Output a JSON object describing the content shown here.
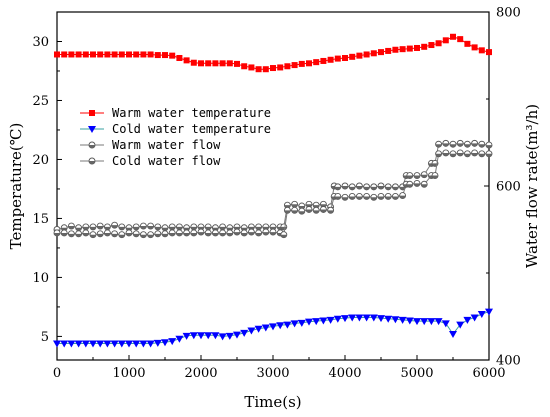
{
  "chart_data": {
    "type": "line",
    "xlabel": "Time(s)",
    "ylabel_left": "Temperature(℃)",
    "ylabel_right": "Water flow rate(m³/h)",
    "xlim": [
      0,
      6000
    ],
    "ylim_left": [
      3,
      32.5
    ],
    "ylim_right": [
      400,
      800
    ],
    "x_ticks": [
      0,
      1000,
      2000,
      3000,
      4000,
      5000,
      6000
    ],
    "y_ticks_left": [
      5,
      10,
      15,
      20,
      25,
      30
    ],
    "y_ticks_right": [
      400,
      600,
      800
    ],
    "grid": false,
    "legend_position": "center-left",
    "series": [
      {
        "name": "Warm water temperature",
        "axis": "left",
        "color": "#ff0000",
        "marker": "square",
        "x": [
          0,
          100,
          200,
          300,
          400,
          500,
          600,
          700,
          800,
          900,
          1000,
          1100,
          1200,
          1300,
          1400,
          1500,
          1600,
          1700,
          1800,
          1900,
          2000,
          2100,
          2200,
          2300,
          2400,
          2500,
          2600,
          2700,
          2800,
          2900,
          3000,
          3100,
          3200,
          3300,
          3400,
          3500,
          3600,
          3700,
          3800,
          3900,
          4000,
          4100,
          4200,
          4300,
          4400,
          4500,
          4600,
          4700,
          4800,
          4900,
          5000,
          5100,
          5200,
          5300,
          5400,
          5500,
          5600,
          5700,
          5800,
          5900,
          6000
        ],
        "y": [
          28.9,
          28.9,
          28.9,
          28.9,
          28.9,
          28.9,
          28.9,
          28.9,
          28.9,
          28.9,
          28.9,
          28.9,
          28.9,
          28.9,
          28.85,
          28.85,
          28.8,
          28.6,
          28.4,
          28.2,
          28.15,
          28.15,
          28.15,
          28.15,
          28.15,
          28.1,
          27.9,
          27.8,
          27.65,
          27.65,
          27.75,
          27.8,
          27.9,
          28.0,
          28.1,
          28.15,
          28.25,
          28.35,
          28.45,
          28.55,
          28.6,
          28.7,
          28.8,
          28.9,
          29.0,
          29.1,
          29.2,
          29.3,
          29.35,
          29.4,
          29.45,
          29.55,
          29.7,
          29.85,
          30.1,
          30.4,
          30.2,
          29.8,
          29.5,
          29.25,
          29.1
        ]
      },
      {
        "name": "Cold water temperature",
        "axis": "left",
        "color": "#0000ff",
        "marker": "triangle-down",
        "x": [
          0,
          100,
          200,
          300,
          400,
          500,
          600,
          700,
          800,
          900,
          1000,
          1100,
          1200,
          1300,
          1400,
          1500,
          1600,
          1700,
          1800,
          1900,
          2000,
          2100,
          2200,
          2300,
          2400,
          2500,
          2600,
          2700,
          2800,
          2900,
          3000,
          3100,
          3200,
          3300,
          3400,
          3500,
          3600,
          3700,
          3800,
          3900,
          4000,
          4100,
          4200,
          4300,
          4400,
          4500,
          4600,
          4700,
          4800,
          4900,
          5000,
          5100,
          5200,
          5300,
          5400,
          5500,
          5600,
          5700,
          5800,
          5900,
          6000
        ],
        "y": [
          4.4,
          4.4,
          4.4,
          4.4,
          4.4,
          4.4,
          4.4,
          4.4,
          4.4,
          4.4,
          4.4,
          4.4,
          4.4,
          4.4,
          4.45,
          4.5,
          4.6,
          4.8,
          5.05,
          5.1,
          5.1,
          5.1,
          5.1,
          5.0,
          5.05,
          5.15,
          5.3,
          5.5,
          5.65,
          5.75,
          5.85,
          5.95,
          6.0,
          6.1,
          6.15,
          6.25,
          6.3,
          6.35,
          6.4,
          6.5,
          6.55,
          6.6,
          6.6,
          6.6,
          6.6,
          6.55,
          6.5,
          6.45,
          6.4,
          6.35,
          6.3,
          6.3,
          6.3,
          6.3,
          6.1,
          5.2,
          6.0,
          6.4,
          6.6,
          6.9,
          7.1
        ]
      }
    ],
    "flow_series": [
      {
        "name": "Warm water flow",
        "axis": "right",
        "color": "#9a9a9a",
        "marker": "circle-half",
        "x": [
          0,
          100,
          200,
          300,
          400,
          500,
          600,
          700,
          800,
          900,
          1000,
          1100,
          1200,
          1300,
          1400,
          1500,
          1600,
          1700,
          1800,
          1900,
          2000,
          2100,
          2200,
          2300,
          2400,
          2500,
          2600,
          2700,
          2800,
          2900,
          3000,
          3100,
          3150,
          3200,
          3300,
          3400,
          3500,
          3600,
          3700,
          3800,
          3850,
          3900,
          4000,
          4100,
          4200,
          4300,
          4400,
          4500,
          4600,
          4700,
          4800,
          4850,
          4900,
          5000,
          5100,
          5200,
          5250,
          5300,
          5400,
          5500,
          5600,
          5700,
          5800,
          5900,
          6000
        ],
        "y": [
          550,
          552,
          554,
          552,
          553,
          553,
          554,
          553,
          555,
          553,
          552,
          553,
          554,
          554,
          553,
          552,
          553,
          553,
          552,
          553,
          553,
          553,
          552,
          553,
          552,
          553,
          552,
          553,
          553,
          553,
          553,
          553,
          553,
          578,
          579,
          577,
          579,
          578,
          579,
          576,
          600,
          599,
          600,
          599,
          600,
          599,
          599,
          600,
          599,
          599,
          599,
          612,
          612,
          612,
          613,
          626,
          626,
          648,
          649,
          648,
          649,
          648,
          649,
          648,
          647
        ]
      },
      {
        "name": "Cold water flow",
        "axis": "right",
        "color": "#9a9a9a",
        "marker": "circle-half",
        "x": [
          0,
          100,
          200,
          300,
          400,
          500,
          600,
          700,
          800,
          900,
          1000,
          1100,
          1200,
          1300,
          1400,
          1500,
          1600,
          1700,
          1800,
          1900,
          2000,
          2100,
          2200,
          2300,
          2400,
          2500,
          2600,
          2700,
          2800,
          2900,
          3000,
          3100,
          3150,
          3200,
          3300,
          3400,
          3500,
          3600,
          3700,
          3800,
          3850,
          3900,
          4000,
          4100,
          4200,
          4300,
          4400,
          4500,
          4600,
          4700,
          4800,
          4850,
          4900,
          5000,
          5100,
          5200,
          5250,
          5300,
          5400,
          5500,
          5600,
          5700,
          5800,
          5900,
          6000
        ],
        "y": [
          546,
          546,
          545,
          545,
          546,
          544,
          545,
          546,
          545,
          544,
          546,
          545,
          544,
          544,
          545,
          545,
          546,
          546,
          546,
          546,
          547,
          546,
          546,
          546,
          546,
          547,
          546,
          547,
          546,
          547,
          547,
          546,
          544,
          572,
          572,
          571,
          573,
          572,
          573,
          572,
          588,
          588,
          587,
          588,
          588,
          588,
          587,
          588,
          588,
          588,
          589,
          602,
          602,
          603,
          602,
          612,
          612,
          637,
          638,
          637,
          638,
          637,
          638,
          637,
          637
        ]
      }
    ]
  }
}
